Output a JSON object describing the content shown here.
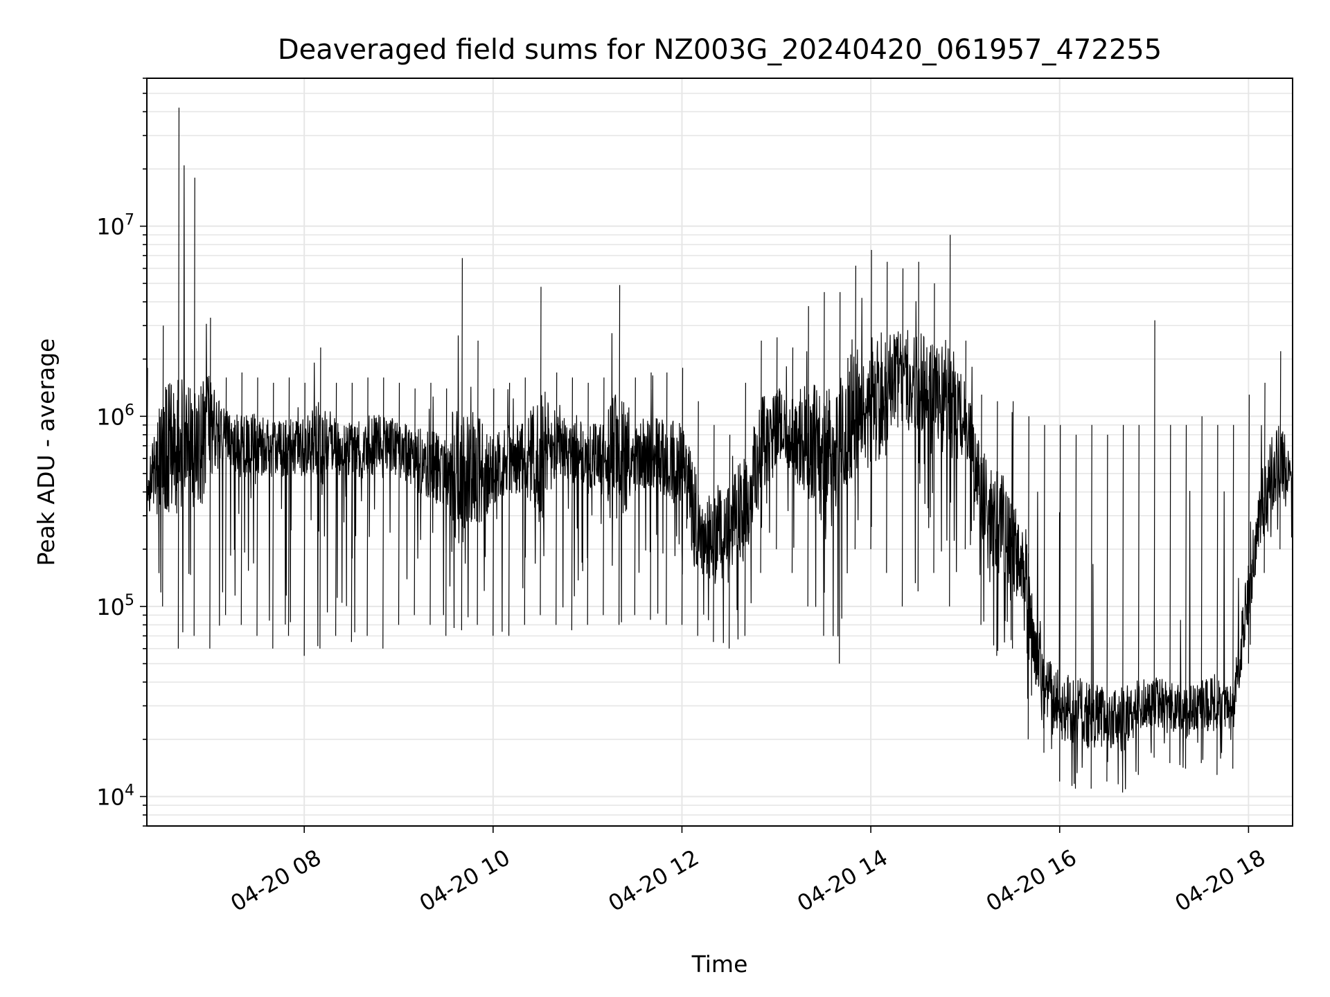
{
  "chart_data": {
    "type": "line",
    "title": "Deaveraged field sums for NZ003G_20240420_061957_472255",
    "xlabel": "Time",
    "ylabel": "Peak ADU - average",
    "y_scale": "log",
    "ylim": [
      7000,
      60000000
    ],
    "xlim": [
      "2024-04-20 06:20",
      "2024-04-20 18:28"
    ],
    "grid": true,
    "line_color": "#000000",
    "x_tick_labels": [
      "04-20 08",
      "04-20 10",
      "04-20 12",
      "04-20 14",
      "04-20 16",
      "04-20 18"
    ],
    "x_tick_values": [
      "2024-04-20 08:00",
      "2024-04-20 10:00",
      "2024-04-20 12:00",
      "2024-04-20 14:00",
      "2024-04-20 16:00",
      "2024-04-20 18:00"
    ],
    "y_tick_labels": [
      {
        "base": "10",
        "exp": "4",
        "value": 10000
      },
      {
        "base": "10",
        "exp": "5",
        "value": 100000
      },
      {
        "base": "10",
        "exp": "6",
        "value": 1000000
      },
      {
        "base": "10",
        "exp": "7",
        "value": 10000000
      }
    ],
    "series": [
      {
        "x": [
          "06:20",
          "06:30",
          "06:40",
          "06:50",
          "07:00",
          "07:10",
          "07:20",
          "07:30",
          "07:40",
          "07:50",
          "08:00",
          "08:10",
          "08:20",
          "08:30",
          "08:40",
          "08:50",
          "09:00",
          "09:10",
          "09:20",
          "09:30",
          "09:40",
          "09:50",
          "10:00",
          "10:10",
          "10:20",
          "10:30",
          "10:40",
          "10:50",
          "11:00",
          "11:10",
          "11:20",
          "11:30",
          "11:40",
          "11:50",
          "12:00",
          "12:10",
          "12:20",
          "12:30",
          "12:40",
          "12:50",
          "13:00",
          "13:10",
          "13:20",
          "13:30",
          "13:40",
          "13:50",
          "14:00",
          "14:10",
          "14:20",
          "14:30",
          "14:40",
          "14:50",
          "15:00",
          "15:10",
          "15:20",
          "15:30",
          "15:40",
          "15:50",
          "16:00",
          "16:10",
          "16:20",
          "16:30",
          "16:40",
          "16:50",
          "17:00",
          "17:10",
          "17:20",
          "17:30",
          "17:40",
          "17:50",
          "18:00",
          "18:10",
          "18:20",
          "18:28"
        ],
        "y": [
          400000,
          650000,
          750000,
          700000,
          850000,
          800000,
          700000,
          720000,
          650000,
          700000,
          680000,
          720000,
          700000,
          650000,
          700000,
          720000,
          680000,
          600000,
          550000,
          520000,
          500000,
          480000,
          520000,
          580000,
          600000,
          650000,
          700000,
          650000,
          620000,
          600000,
          580000,
          620000,
          650000,
          600000,
          550000,
          250000,
          220000,
          250000,
          350000,
          700000,
          900000,
          800000,
          700000,
          600000,
          800000,
          1100000,
          1200000,
          1400000,
          1600000,
          1500000,
          1400000,
          1200000,
          1000000,
          400000,
          300000,
          200000,
          120000,
          40000,
          30000,
          28000,
          27000,
          26000,
          25000,
          30000,
          32000,
          30000,
          28000,
          30000,
          31000,
          29000,
          120000,
          400000,
          600000,
          450000
        ],
        "ymin": [
          250000,
          100000,
          60000,
          70000,
          60000,
          90000,
          80000,
          70000,
          60000,
          70000,
          55000,
          60000,
          70000,
          65000,
          70000,
          60000,
          80000,
          90000,
          80000,
          70000,
          75000,
          80000,
          70000,
          70000,
          80000,
          90000,
          80000,
          75000,
          80000,
          90000,
          80000,
          90000,
          85000,
          80000,
          80000,
          70000,
          65000,
          60000,
          70000,
          150000,
          200000,
          150000,
          100000,
          70000,
          50000,
          200000,
          200000,
          150000,
          100000,
          120000,
          150000,
          100000,
          200000,
          80000,
          55000,
          60000,
          20000,
          17000,
          12000,
          11000,
          11000,
          12000,
          10500,
          13000,
          16000,
          15000,
          14000,
          15000,
          13000,
          14000,
          50000,
          150000,
          200000,
          200000
        ],
        "ymax": [
          1800000,
          3000000,
          42000000,
          18000000,
          3300000,
          1600000,
          1700000,
          1600000,
          1500000,
          1600000,
          1500000,
          2300000,
          1500000,
          1500000,
          1600000,
          1600000,
          1500000,
          1400000,
          1500000,
          1400000,
          6800000,
          2500000,
          1400000,
          1500000,
          1600000,
          4800000,
          1700000,
          1600000,
          1500000,
          1600000,
          4900000,
          1600000,
          1700000,
          1700000,
          1800000,
          1200000,
          900000,
          800000,
          1500000,
          2500000,
          2600000,
          2300000,
          3800000,
          4500000,
          4500000,
          6200000,
          7500000,
          6500000,
          6000000,
          6500000,
          5000000,
          9000000,
          2500000,
          1300000,
          1200000,
          1200000,
          1000000,
          900000,
          900000,
          800000,
          900000,
          800000,
          900000,
          900000,
          3200000,
          900000,
          900000,
          1000000,
          900000,
          900000,
          1300000,
          1500000,
          2200000,
          600000
        ]
      }
    ]
  }
}
